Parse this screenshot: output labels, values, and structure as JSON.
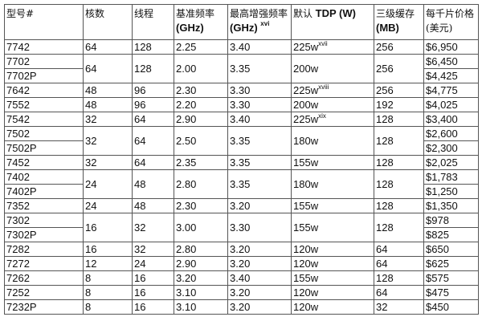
{
  "headers": [
    {
      "cn": "型号#",
      "en": "",
      "sup": ""
    },
    {
      "cn": "核数",
      "en": "",
      "sup": ""
    },
    {
      "cn": "线程",
      "en": "",
      "sup": ""
    },
    {
      "cn": "基准频率",
      "en": "(GHz)",
      "sup": ""
    },
    {
      "cn": "最高增强频率",
      "en": "(GHz)",
      "sup": "xvi"
    },
    {
      "cn": "默认",
      "en": "TDP (W)",
      "sup": ""
    },
    {
      "cn": "三级缓存",
      "en": "(MB)",
      "sup": ""
    },
    {
      "cn": "每千片价格(美元)",
      "en": "",
      "sup": ""
    }
  ],
  "rows": [
    {
      "models": [
        "7742"
      ],
      "cores": "64",
      "threads": "128",
      "base": "2.25",
      "boost": "3.40",
      "tdp": "225w",
      "tdp_sup": "xvii",
      "l3": "256",
      "prices": [
        "$6,950"
      ]
    },
    {
      "models": [
        "7702",
        "7702P"
      ],
      "cores": "64",
      "threads": "128",
      "base": "2.00",
      "boost": "3.35",
      "tdp": "200w",
      "tdp_sup": "",
      "l3": "256",
      "prices": [
        "$6,450",
        "$4,425"
      ]
    },
    {
      "models": [
        "7642"
      ],
      "cores": "48",
      "threads": "96",
      "base": "2.30",
      "boost": "3.30",
      "tdp": "225w",
      "tdp_sup": "xviii",
      "l3": "256",
      "prices": [
        "$4,775"
      ]
    },
    {
      "models": [
        "7552"
      ],
      "cores": "48",
      "threads": "96",
      "base": "2.20",
      "boost": "3.30",
      "tdp": "200w",
      "tdp_sup": "",
      "l3": "192",
      "prices": [
        "$4,025"
      ]
    },
    {
      "models": [
        "7542"
      ],
      "cores": "32",
      "threads": "64",
      "base": "2.90",
      "boost": "3.40",
      "tdp": "225w",
      "tdp_sup": "xix",
      "l3": "128",
      "prices": [
        "$3,400"
      ]
    },
    {
      "models": [
        "7502",
        "7502P"
      ],
      "cores": "32",
      "threads": "64",
      "base": "2.50",
      "boost": "3.35",
      "tdp": "180w",
      "tdp_sup": "",
      "l3": "128",
      "prices": [
        "$2,600",
        "$2,300"
      ]
    },
    {
      "models": [
        "7452"
      ],
      "cores": "32",
      "threads": "64",
      "base": "2.35",
      "boost": "3.35",
      "tdp": "155w",
      "tdp_sup": "",
      "l3": "128",
      "prices": [
        "$2,025"
      ]
    },
    {
      "models": [
        "7402",
        "7402P"
      ],
      "cores": "24",
      "threads": "48",
      "base": "2.80",
      "boost": "3.35",
      "tdp": "180w",
      "tdp_sup": "",
      "l3": "128",
      "prices": [
        "$1,783",
        "$1,250"
      ]
    },
    {
      "models": [
        "7352"
      ],
      "cores": "24",
      "threads": "48",
      "base": "2.30",
      "boost": "3.20",
      "tdp": "155w",
      "tdp_sup": "",
      "l3": "128",
      "prices": [
        "$1,350"
      ]
    },
    {
      "models": [
        "7302",
        "7302P"
      ],
      "cores": "16",
      "threads": "32",
      "base": "3.00",
      "boost": "3.30",
      "tdp": "155w",
      "tdp_sup": "",
      "l3": "128",
      "prices": [
        "$978",
        "$825"
      ]
    },
    {
      "models": [
        "7282"
      ],
      "cores": "16",
      "threads": "32",
      "base": "2.80",
      "boost": "3.20",
      "tdp": "120w",
      "tdp_sup": "",
      "l3": "64",
      "prices": [
        "$650"
      ]
    },
    {
      "models": [
        "7272"
      ],
      "cores": "12",
      "threads": "24",
      "base": "2.90",
      "boost": "3.20",
      "tdp": "120w",
      "tdp_sup": "",
      "l3": "64",
      "prices": [
        "$625"
      ]
    },
    {
      "models": [
        "7262"
      ],
      "cores": "8",
      "threads": "16",
      "base": "3.20",
      "boost": "3.40",
      "tdp": "155w",
      "tdp_sup": "",
      "l3": "128",
      "prices": [
        "$575"
      ]
    },
    {
      "models": [
        "7252"
      ],
      "cores": "8",
      "threads": "16",
      "base": "3.10",
      "boost": "3.20",
      "tdp": "120w",
      "tdp_sup": "",
      "l3": "64",
      "prices": [
        "$475"
      ]
    },
    {
      "models": [
        "7232P"
      ],
      "cores": "8",
      "threads": "16",
      "base": "3.10",
      "boost": "3.20",
      "tdp": "120w",
      "tdp_sup": "",
      "l3": "32",
      "prices": [
        "$450"
      ]
    }
  ]
}
